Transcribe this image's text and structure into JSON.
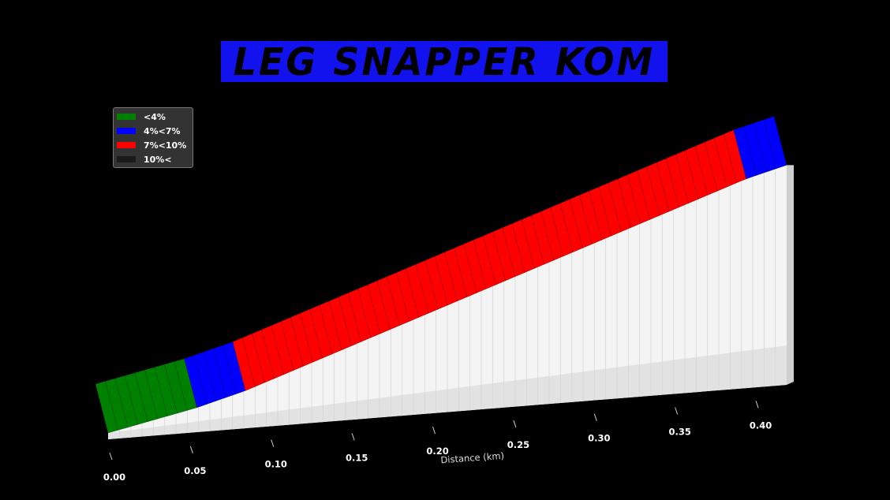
{
  "chart_data": {
    "type": "area",
    "title": "LEG SNAPPER KOM",
    "xlabel": "Distance (km)",
    "x_ticks": [
      "0.00",
      "0.05",
      "0.10",
      "0.15",
      "0.20",
      "0.25",
      "0.30",
      "0.35",
      "0.40"
    ],
    "xlim": [
      0,
      0.42
    ],
    "legend": {
      "placement": "top-left",
      "entries": [
        {
          "label": "<4%",
          "color": "#008000"
        },
        {
          "label": "4%<7%",
          "color": "#0000ff"
        },
        {
          "label": "7%<10%",
          "color": "#ff0000"
        },
        {
          "label": "10%<",
          "color": "#1a1a1a"
        }
      ]
    },
    "segments": [
      {
        "x_start": 0.0,
        "x_end": 0.055,
        "gradient_class": "<4%",
        "color": "#008000"
      },
      {
        "x_start": 0.055,
        "x_end": 0.085,
        "gradient_class": "4%<7%",
        "color": "#0000ff"
      },
      {
        "x_start": 0.085,
        "x_end": 0.395,
        "gradient_class": "7%<10%",
        "color": "#ff0000"
      },
      {
        "x_start": 0.395,
        "x_end": 0.42,
        "gradient_class": "4%<7%",
        "color": "#0000ff"
      }
    ],
    "background": "#000000",
    "title_background": "#1212ee"
  }
}
